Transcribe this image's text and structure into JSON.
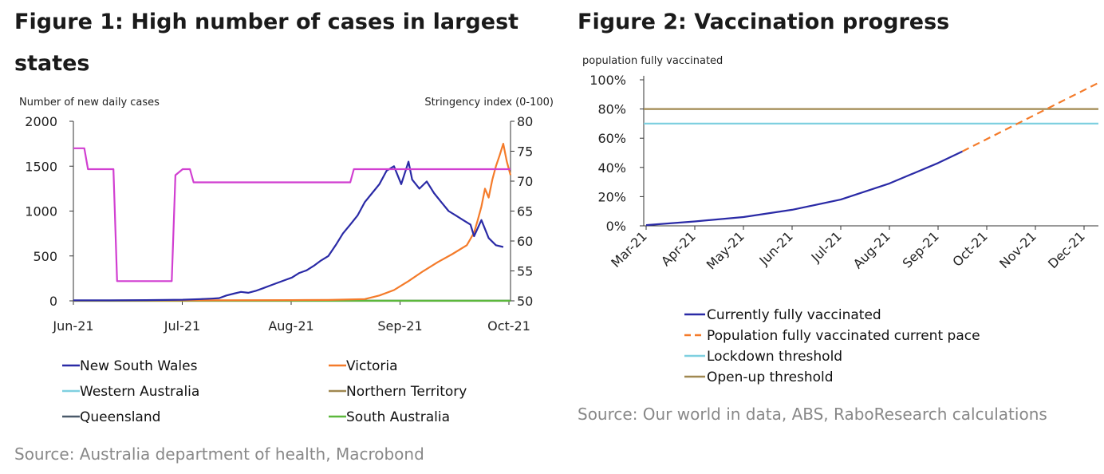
{
  "figure1": {
    "title": "Figure 1: High number of cases in largest states",
    "source": "Source: Australia department of health, Macrobond",
    "chart_data": {
      "type": "line",
      "y_left_label": "Number of new daily cases",
      "y_right_label": "Stringency index (0-100)",
      "y_left_range": [
        0,
        2000
      ],
      "y_left_ticks": [
        "0",
        "500",
        "1000",
        "1500",
        "2000"
      ],
      "y_right_range": [
        50,
        80
      ],
      "y_right_ticks": [
        "50",
        "55",
        "60",
        "65",
        "70",
        "75",
        "80"
      ],
      "x_ticks": [
        "Jun-21",
        "Jul-21",
        "Aug-21",
        "Sep-21",
        "Oct-21"
      ],
      "legend": [
        "New South Wales",
        "Victoria",
        "Western Australia",
        "Northern Territory",
        "Queensland",
        "South Australia"
      ],
      "series": [
        {
          "name": "New South Wales",
          "color": "#2a2aa6",
          "axis": "left",
          "points": [
            [
              0,
              5
            ],
            [
              10,
              5
            ],
            [
              20,
              8
            ],
            [
              30,
              12
            ],
            [
              35,
              20
            ],
            [
              38,
              25
            ],
            [
              40,
              30
            ],
            [
              42,
              60
            ],
            [
              44,
              80
            ],
            [
              46,
              100
            ],
            [
              48,
              90
            ],
            [
              50,
              110
            ],
            [
              52,
              140
            ],
            [
              54,
              170
            ],
            [
              56,
              200
            ],
            [
              58,
              230
            ],
            [
              60,
              260
            ],
            [
              62,
              310
            ],
            [
              64,
              340
            ],
            [
              66,
              390
            ],
            [
              68,
              450
            ],
            [
              70,
              500
            ],
            [
              72,
              620
            ],
            [
              74,
              750
            ],
            [
              76,
              850
            ],
            [
              78,
              950
            ],
            [
              80,
              1100
            ],
            [
              82,
              1200
            ],
            [
              84,
              1300
            ],
            [
              86,
              1450
            ],
            [
              88,
              1500
            ],
            [
              90,
              1300
            ],
            [
              92,
              1550
            ],
            [
              93,
              1350
            ],
            [
              95,
              1250
            ],
            [
              97,
              1330
            ],
            [
              99,
              1200
            ],
            [
              101,
              1100
            ],
            [
              103,
              1000
            ],
            [
              105,
              950
            ],
            [
              107,
              900
            ],
            [
              109,
              850
            ],
            [
              110,
              720
            ],
            [
              112,
              900
            ],
            [
              114,
              700
            ],
            [
              116,
              620
            ],
            [
              118,
              600
            ]
          ]
        },
        {
          "name": "Victoria",
          "color": "#f47b2a",
          "axis": "left",
          "points": [
            [
              0,
              3
            ],
            [
              60,
              8
            ],
            [
              70,
              10
            ],
            [
              80,
              20
            ],
            [
              84,
              60
            ],
            [
              88,
              120
            ],
            [
              92,
              220
            ],
            [
              96,
              330
            ],
            [
              100,
              430
            ],
            [
              104,
              520
            ],
            [
              108,
              620
            ],
            [
              110,
              760
            ],
            [
              111,
              900
            ],
            [
              112,
              1050
            ],
            [
              113,
              1250
            ],
            [
              114,
              1150
            ],
            [
              115,
              1350
            ],
            [
              116,
              1500
            ],
            [
              117,
              1620
            ],
            [
              118,
              1750
            ],
            [
              119,
              1550
            ],
            [
              120,
              1400
            ]
          ]
        },
        {
          "name": "Western Australia",
          "color": "#7fd0e0",
          "axis": "left",
          "points": [
            [
              0,
              0
            ],
            [
              120,
              0
            ]
          ]
        },
        {
          "name": "Northern Territory",
          "color": "#a08850",
          "axis": "left",
          "points": [
            [
              0,
              0
            ],
            [
              120,
              0
            ]
          ]
        },
        {
          "name": "Queensland",
          "color": "#4a5a6a",
          "axis": "left",
          "points": [
            [
              0,
              2
            ],
            [
              120,
              2
            ]
          ]
        },
        {
          "name": "South Australia",
          "color": "#5cb83c",
          "axis": "left",
          "points": [
            [
              0,
              1
            ],
            [
              120,
              1
            ]
          ]
        },
        {
          "name": "Stringency index",
          "color": "#d13fd1",
          "axis": "right",
          "points": [
            [
              0,
              75.5
            ],
            [
              3,
              75.5
            ],
            [
              4,
              72
            ],
            [
              11,
              72
            ],
            [
              12,
              53.3
            ],
            [
              27,
              53.3
            ],
            [
              28,
              71
            ],
            [
              30,
              72
            ],
            [
              32,
              72
            ],
            [
              33,
              69.8
            ],
            [
              76,
              69.8
            ],
            [
              77,
              72
            ],
            [
              120,
              72
            ]
          ]
        }
      ]
    }
  },
  "figure2": {
    "title": "Figure 2: Vaccination progress",
    "source": "Source: Our world in data, ABS, RaboResearch calculations",
    "chart_data": {
      "type": "line",
      "y_label": "population fully vaccinated",
      "y_range": [
        0,
        100
      ],
      "y_ticks": [
        "0%",
        "20%",
        "40%",
        "60%",
        "80%",
        "100%"
      ],
      "x_ticks": [
        "Mar-21",
        "Apr-21",
        "May-21",
        "Jun-21",
        "Jul-21",
        "Aug-21",
        "Sep-21",
        "Oct-21",
        "Nov-21",
        "Dec-21"
      ],
      "legend": [
        "Currently fully vaccinated",
        "Population fully vaccinated current pace",
        "Lockdown threshold",
        "Open-up threshold"
      ],
      "series": [
        {
          "name": "Currently fully vaccinated",
          "color": "#2a2aa6",
          "style": "solid",
          "points": [
            [
              0,
              0.5
            ],
            [
              1,
              3
            ],
            [
              2,
              6
            ],
            [
              3,
              11
            ],
            [
              4,
              18
            ],
            [
              5,
              29
            ],
            [
              6,
              43
            ],
            [
              6.5,
              51
            ]
          ]
        },
        {
          "name": "Population fully vaccinated current pace",
          "color": "#f47b2a",
          "style": "dashed",
          "points": [
            [
              6.5,
              51
            ],
            [
              9.3,
              98
            ]
          ]
        },
        {
          "name": "Lockdown threshold",
          "color": "#7fd0e0",
          "style": "solid",
          "points": [
            [
              0,
              70
            ],
            [
              9.3,
              70
            ]
          ]
        },
        {
          "name": "Open-up threshold",
          "color": "#a08850",
          "style": "solid",
          "points": [
            [
              0,
              80
            ],
            [
              9.3,
              80
            ]
          ]
        }
      ]
    }
  }
}
